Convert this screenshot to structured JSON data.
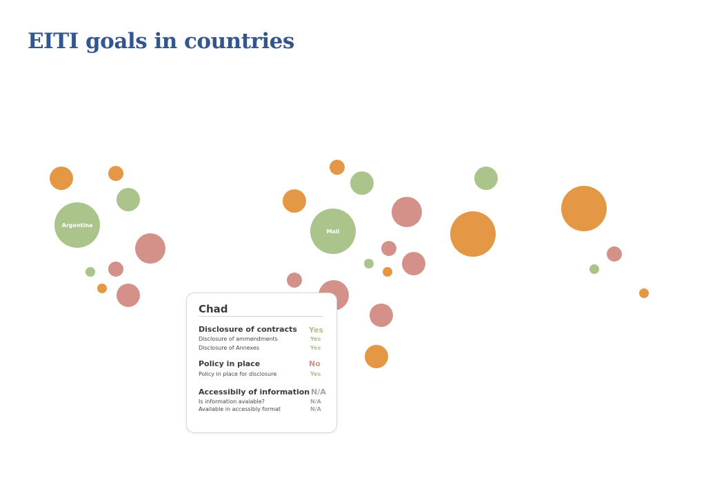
{
  "title": "EITI goals in countries",
  "colors": {
    "title": "#34568f",
    "green": "#aac48c",
    "orange": "#e49745",
    "red": "#d3918a",
    "na": "#a3a3a3"
  },
  "chart_data": {
    "type": "scatter",
    "title": "EITI goals in countries",
    "legend": "none",
    "status_colors": {
      "yes": "#aac48c",
      "partial": "#e49745",
      "no": "#d3918a"
    },
    "labeled_bubbles": [
      {
        "label": "Argentina",
        "status": "yes"
      },
      {
        "label": "Mali",
        "status": "yes"
      }
    ]
  },
  "tooltip": {
    "country": "Chad",
    "sections": [
      {
        "title": "Disclosure of contracts",
        "value": "Yes",
        "items": [
          {
            "label": "Disclosure of ammendments",
            "value": "Yes"
          },
          {
            "label": "Disclosure of Annexes",
            "value": "Yes"
          }
        ]
      },
      {
        "title": "Policy in place",
        "value": "No",
        "items": [
          {
            "label": "Policy in place for disclosure",
            "value": "Yes"
          }
        ]
      },
      {
        "title": "Accessibily of information",
        "value": "N/A",
        "items": [
          {
            "label": "Is information avaiable?",
            "value": "N/A"
          },
          {
            "label": "Available in accessibly format",
            "value": "N/A"
          }
        ]
      }
    ]
  }
}
